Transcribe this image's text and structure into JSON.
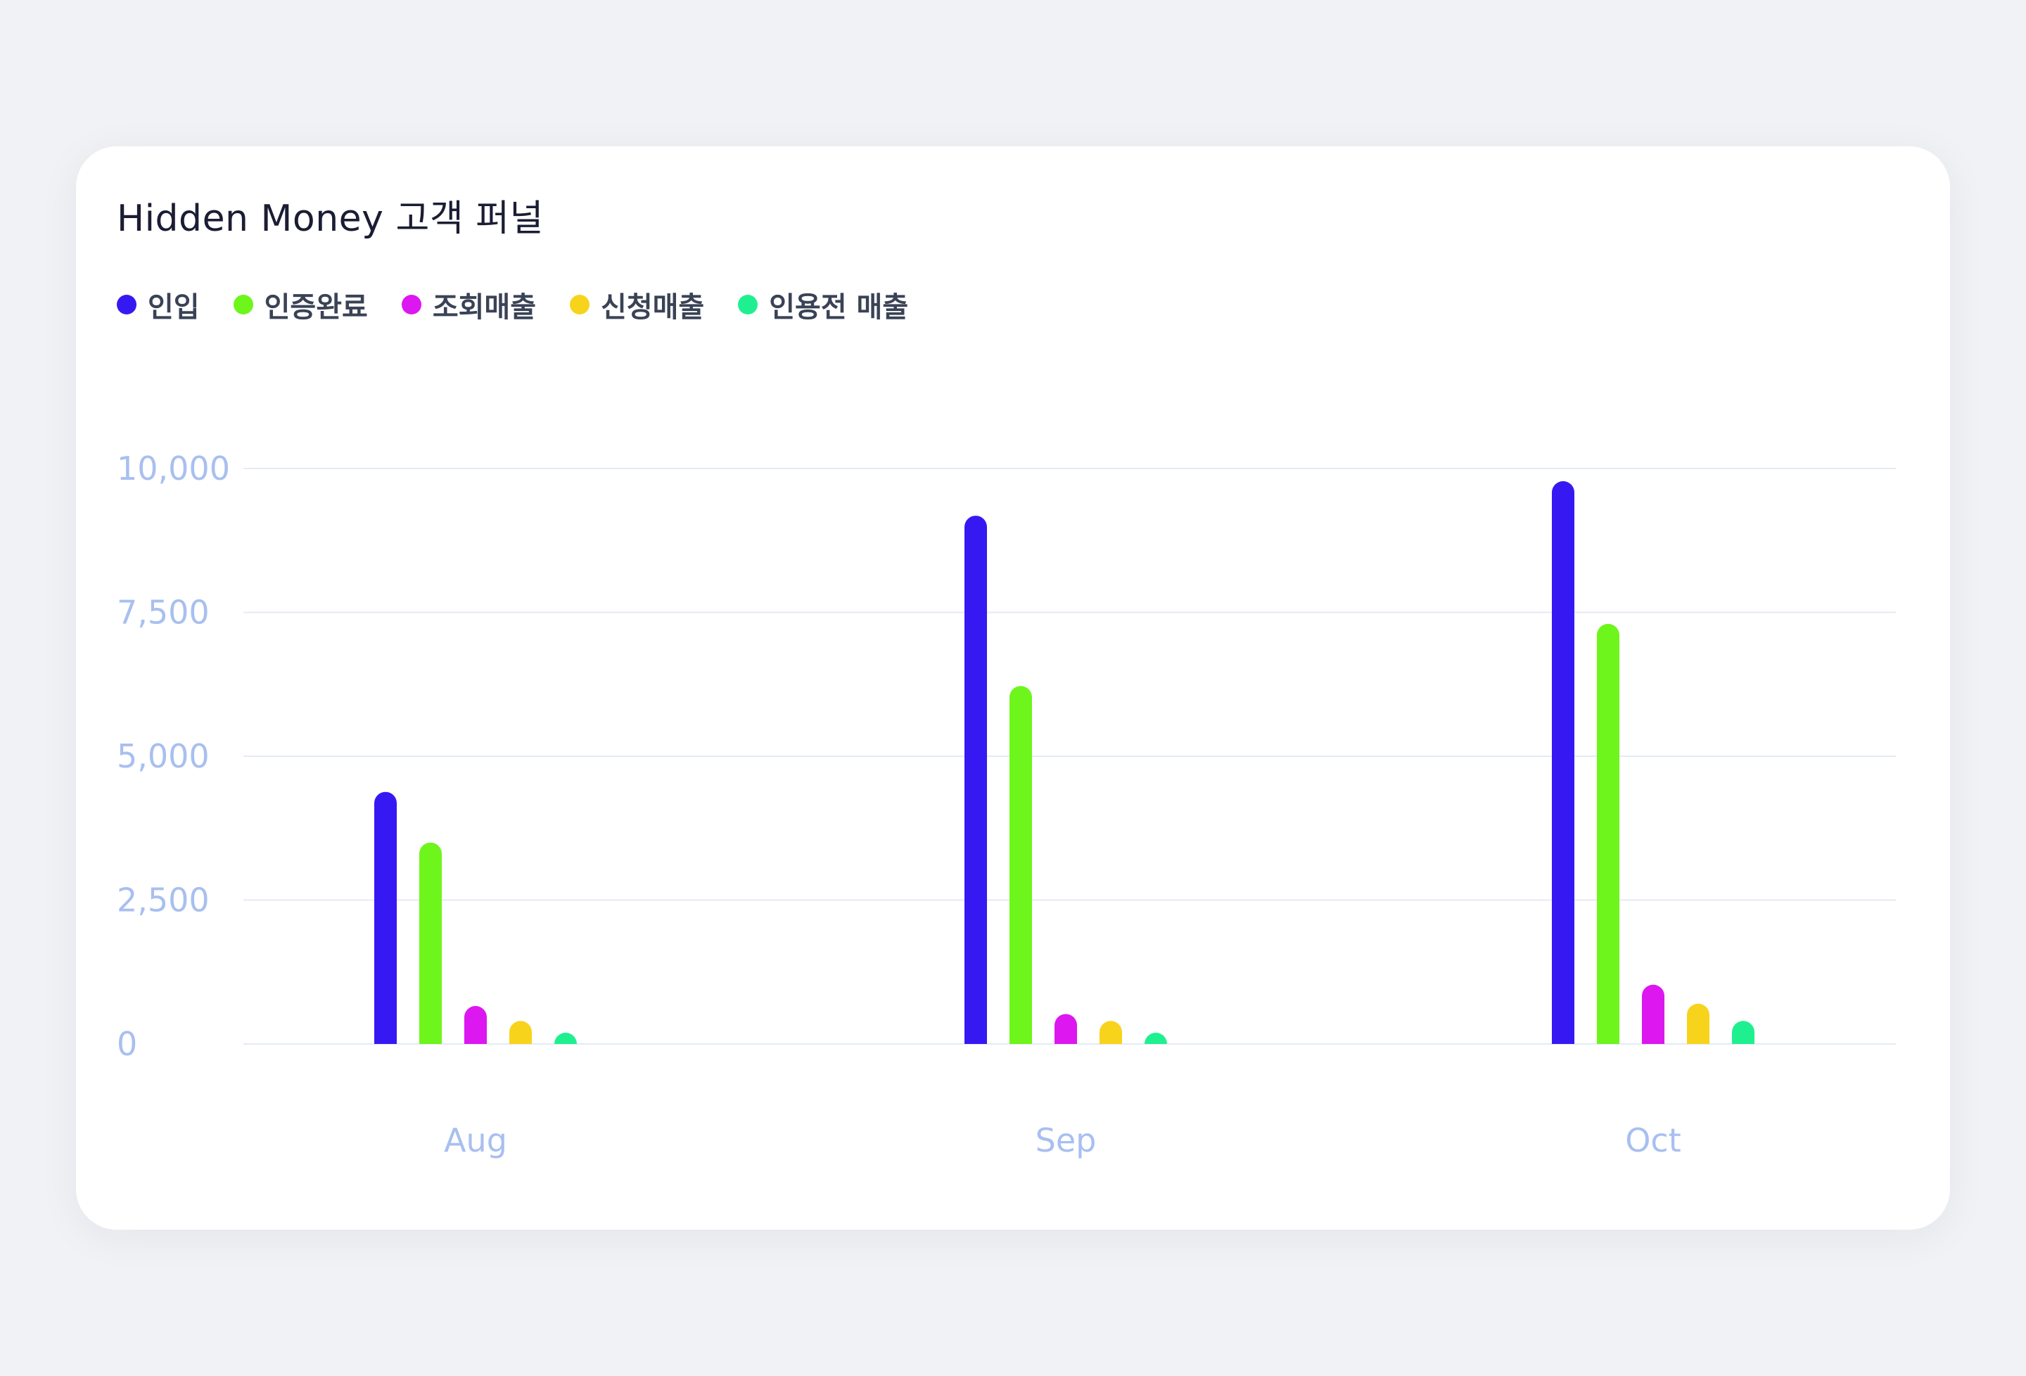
{
  "chart_data": {
    "type": "bar",
    "title": "Hidden Money 고객 퍼널",
    "categories": [
      "Aug",
      "Sep",
      "Oct"
    ],
    "series": [
      {
        "name": "인입",
        "color": "#3619f2",
        "values": [
          4380,
          9180,
          9780
        ]
      },
      {
        "name": "인증완료",
        "color": "#6ef51c",
        "values": [
          3500,
          6220,
          7300
        ]
      },
      {
        "name": "조회매출",
        "color": "#dc17f0",
        "values": [
          660,
          520,
          1030
        ]
      },
      {
        "name": "신청매출",
        "color": "#f7d31b",
        "values": [
          400,
          400,
          700
        ]
      },
      {
        "name": "인용전 매출",
        "color": "#1ff08f",
        "values": [
          120,
          150,
          400
        ]
      }
    ],
    "yticks": [
      "0",
      "2,500",
      "5,000",
      "7,500",
      "10,000"
    ],
    "ylim": [
      0,
      10000
    ],
    "grid": true,
    "legend": "top-left"
  }
}
